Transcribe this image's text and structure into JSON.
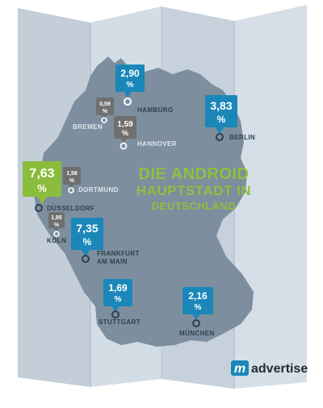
{
  "headline": {
    "line1": "DIE ANDROID",
    "line2": "HAUPTSTADT IN",
    "line3": "DEUTSCHLAND"
  },
  "brand": {
    "mark": "m",
    "name": "advertise"
  },
  "colors": {
    "paper_light": "#d3dde6",
    "paper_mid": "#c3ced9",
    "paper_dark": "#a9b6c3",
    "germany": "#7d8e9e",
    "blue_pin": "#1b87b8",
    "gray_pin": "#6f6f6f",
    "green_pin": "#8bbd3c",
    "headline_green": "#8ec03f",
    "city_dark": "#2f3f4d",
    "city_light": "#dfe6ec"
  },
  "pins": [
    {
      "id": "hamburg",
      "value": "2,90",
      "unit": "%",
      "city": "HAMBURG",
      "city_line2": "",
      "style": "blue"
    },
    {
      "id": "bremen",
      "value": "0,59",
      "unit": "%",
      "city": "BREMEN",
      "city_line2": "",
      "style": "gray"
    },
    {
      "id": "hannover",
      "value": "1,59",
      "unit": "%",
      "city": "HANNOVER",
      "city_line2": "",
      "style": "gray"
    },
    {
      "id": "berlin",
      "value": "3,83",
      "unit": "%",
      "city": "BERLIN",
      "city_line2": "",
      "style": "blue"
    },
    {
      "id": "dusseldorf",
      "value": "7,63",
      "unit": "%",
      "city": "DÜSSELDORF",
      "city_line2": "",
      "style": "green"
    },
    {
      "id": "dortmund",
      "value": "1,56",
      "unit": "%",
      "city": "DORTMUND",
      "city_line2": "",
      "style": "gray"
    },
    {
      "id": "koln",
      "value": "1,85",
      "unit": "%",
      "city": "KÖLN",
      "city_line2": "",
      "style": "gray"
    },
    {
      "id": "frankfurt",
      "value": "7,35",
      "unit": "%",
      "city": "FRANKFURT",
      "city_line2": "AM MAIN",
      "style": "blue"
    },
    {
      "id": "stuttgart",
      "value": "1,69",
      "unit": "%",
      "city": "STUTTGART",
      "city_line2": "",
      "style": "blue"
    },
    {
      "id": "munchen",
      "value": "2,16",
      "unit": "%",
      "city": "MÜNCHEN",
      "city_line2": "",
      "style": "blue"
    }
  ]
}
